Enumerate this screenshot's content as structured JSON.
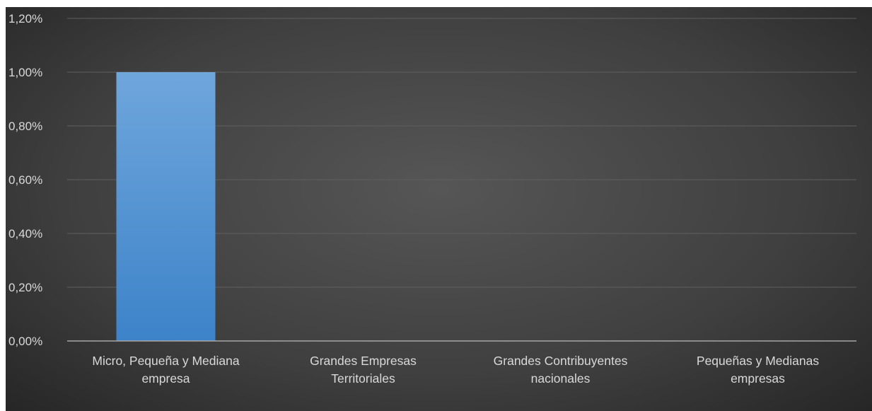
{
  "chart_data": {
    "type": "bar",
    "categories": [
      [
        "Micro, Pequeña y Mediana",
        "empresa"
      ],
      [
        "Grandes Empresas",
        "Territoriales"
      ],
      [
        "Grandes Contribuyentes",
        "nacionales"
      ],
      [
        "Pequeñas y Medianas",
        "empresas"
      ]
    ],
    "values": [
      1.0,
      0.0,
      0.0,
      0.0
    ],
    "unit": "%",
    "ylim": [
      0,
      1.2
    ],
    "yticks": [
      "0,00%",
      "0,20%",
      "0,40%",
      "0,60%",
      "0,80%",
      "1,00%",
      "1,20%"
    ],
    "grid": true,
    "legend": "none",
    "colors": {
      "bar_top": "#6fa6dc",
      "bar_bottom": "#3d83c9",
      "background": "#404040",
      "text": "#d9d9d9",
      "grid": "#5f5f5f",
      "axis": "#a6a6a6"
    }
  }
}
